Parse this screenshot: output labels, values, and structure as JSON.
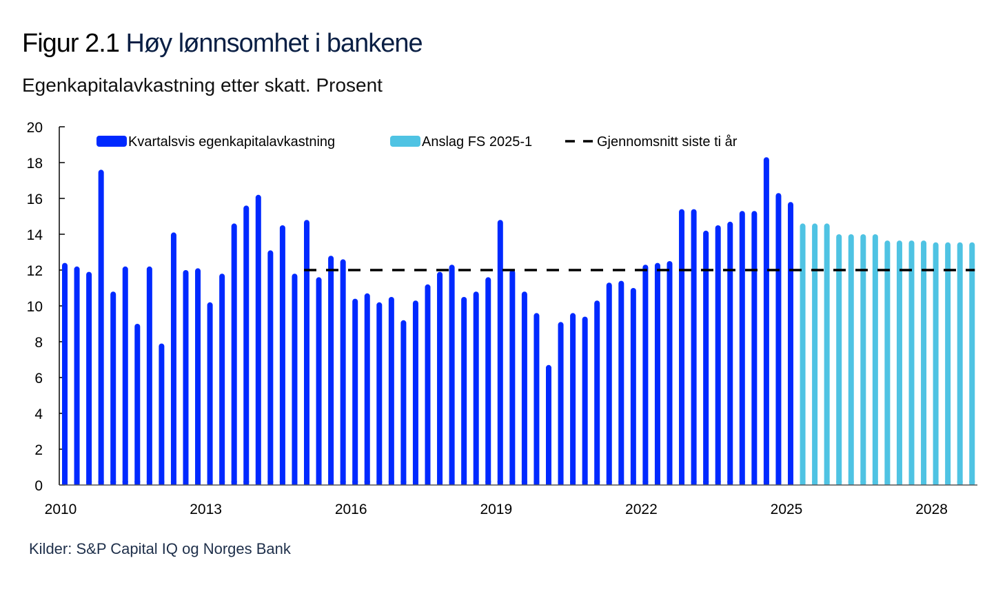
{
  "header": {
    "figure_number": "Figur 2.1",
    "title": "Høy lønnsomhet i bankene",
    "subtitle": "Egenkapitalavkastning etter skatt. Prosent"
  },
  "footer": {
    "source": "Kilder: S&P Capital IQ og Norges Bank"
  },
  "colors": {
    "historical": "#0029ff",
    "forecast": "#4fc3e3",
    "average": "#000000"
  },
  "chart_data": {
    "type": "bar",
    "title": "Høy lønnsomhet i bankene",
    "ylabel": "Prosent",
    "xlabel": "",
    "ylim": [
      0,
      20
    ],
    "yticks": [
      0,
      2,
      4,
      6,
      8,
      10,
      12,
      14,
      16,
      18,
      20
    ],
    "xtick_labels": [
      {
        "label": "2010",
        "index": 0
      },
      {
        "label": "2013",
        "index": 12
      },
      {
        "label": "2016",
        "index": 24
      },
      {
        "label": "2019",
        "index": 36
      },
      {
        "label": "2022",
        "index": 48
      },
      {
        "label": "2025",
        "index": 60
      },
      {
        "label": "2028",
        "index": 72
      }
    ],
    "legend_position": "top",
    "legend": [
      {
        "label": "Kvartalsvis egenkapitalavkastning",
        "kind": "bar",
        "series": "historical"
      },
      {
        "label": "Anslag FS 2025-1",
        "kind": "bar",
        "series": "forecast"
      },
      {
        "label": "Gjennomsnitt siste ti år",
        "kind": "dashed-line",
        "series": "average"
      }
    ],
    "categories": [
      "2010Q1",
      "2010Q2",
      "2010Q3",
      "2010Q4",
      "2011Q1",
      "2011Q2",
      "2011Q3",
      "2011Q4",
      "2012Q1",
      "2012Q2",
      "2012Q3",
      "2012Q4",
      "2013Q1",
      "2013Q2",
      "2013Q3",
      "2013Q4",
      "2014Q1",
      "2014Q2",
      "2014Q3",
      "2014Q4",
      "2015Q1",
      "2015Q2",
      "2015Q3",
      "2015Q4",
      "2016Q1",
      "2016Q2",
      "2016Q3",
      "2016Q4",
      "2017Q1",
      "2017Q2",
      "2017Q3",
      "2017Q4",
      "2018Q1",
      "2018Q2",
      "2018Q3",
      "2018Q4",
      "2019Q1",
      "2019Q2",
      "2019Q3",
      "2019Q4",
      "2020Q1",
      "2020Q2",
      "2020Q3",
      "2020Q4",
      "2021Q1",
      "2021Q2",
      "2021Q3",
      "2021Q4",
      "2022Q1",
      "2022Q2",
      "2022Q3",
      "2022Q4",
      "2023Q1",
      "2023Q2",
      "2023Q3",
      "2023Q4",
      "2024Q1",
      "2024Q2",
      "2024Q3",
      "2024Q4",
      "2025Q1",
      "2025Q2",
      "2025Q3",
      "2025Q4",
      "2026Q1",
      "2026Q2",
      "2026Q3",
      "2026Q4",
      "2027Q1",
      "2027Q2",
      "2027Q3",
      "2027Q4",
      "2028Q1",
      "2028Q2",
      "2028Q3",
      "2028Q4"
    ],
    "series": [
      {
        "name": "Kvartalsvis egenkapitalavkastning",
        "key": "historical",
        "start_index": 0,
        "values": [
          12.4,
          12.2,
          11.9,
          17.6,
          10.8,
          12.2,
          9.0,
          12.2,
          7.9,
          14.1,
          12.0,
          12.1,
          10.2,
          11.8,
          14.6,
          15.6,
          16.2,
          13.1,
          14.5,
          11.8,
          14.8,
          11.6,
          12.8,
          12.6,
          10.4,
          10.7,
          10.2,
          10.5,
          9.2,
          10.3,
          11.2,
          11.9,
          12.3,
          10.5,
          10.8,
          11.6,
          14.8,
          12.0,
          10.8,
          9.6,
          6.7,
          9.1,
          9.6,
          9.4,
          10.3,
          11.3,
          11.4,
          11.0,
          12.3,
          12.4,
          12.5,
          15.4,
          15.4,
          14.2,
          14.5,
          14.7,
          15.3,
          15.3,
          18.3,
          16.3,
          15.8
        ]
      },
      {
        "name": "Anslag FS 2025-1",
        "key": "forecast",
        "start_index": 61,
        "values": [
          14.6,
          14.6,
          14.6,
          14.0,
          14.0,
          14.0,
          14.0,
          13.65,
          13.65,
          13.65,
          13.65,
          13.55,
          13.55,
          13.55,
          13.55
        ]
      },
      {
        "name": "Gjennomsnitt siste ti år",
        "key": "average",
        "type": "line",
        "start_index": 20,
        "end_index": 75,
        "value": 12.0
      }
    ]
  }
}
